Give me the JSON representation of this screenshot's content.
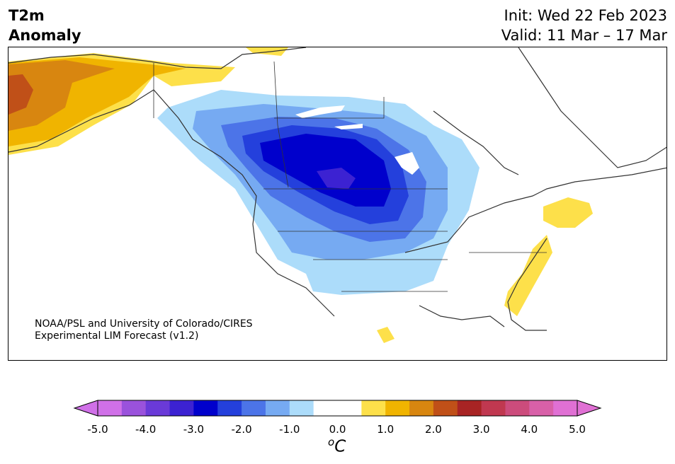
{
  "title": {
    "line1": "T2m",
    "line2": "Anomaly"
  },
  "info": {
    "init": "Init: Wed 22 Feb 2023",
    "valid": "Valid: 11 Mar – 17 Mar"
  },
  "credit": {
    "line1": "NOAA/PSL and University of Colorado/CIRES",
    "line2": "Experimental LIM Forecast (v1.2)"
  },
  "colorbar": {
    "unit": "C",
    "unit_prefix": "o",
    "ticks": [
      "-5.0",
      "-4.0",
      "-3.0",
      "-2.0",
      "-1.0",
      "0.0",
      "1.0",
      "2.0",
      "3.0",
      "4.0",
      "5.0"
    ],
    "colors": [
      "#d070e8",
      "#9a52dc",
      "#6a3ad8",
      "#3c22d2",
      "#0000cc",
      "#2440dc",
      "#4c74e8",
      "#76aaf2",
      "#acdcfa",
      "#ffffff",
      "#ffffff",
      "#fde04a",
      "#f0b400",
      "#d88610",
      "#c05018",
      "#a82424",
      "#c03850",
      "#cc4c7c",
      "#d860a8",
      "#e070d4"
    ],
    "under_color": "#d070e8",
    "over_color": "#e070d4"
  }
}
